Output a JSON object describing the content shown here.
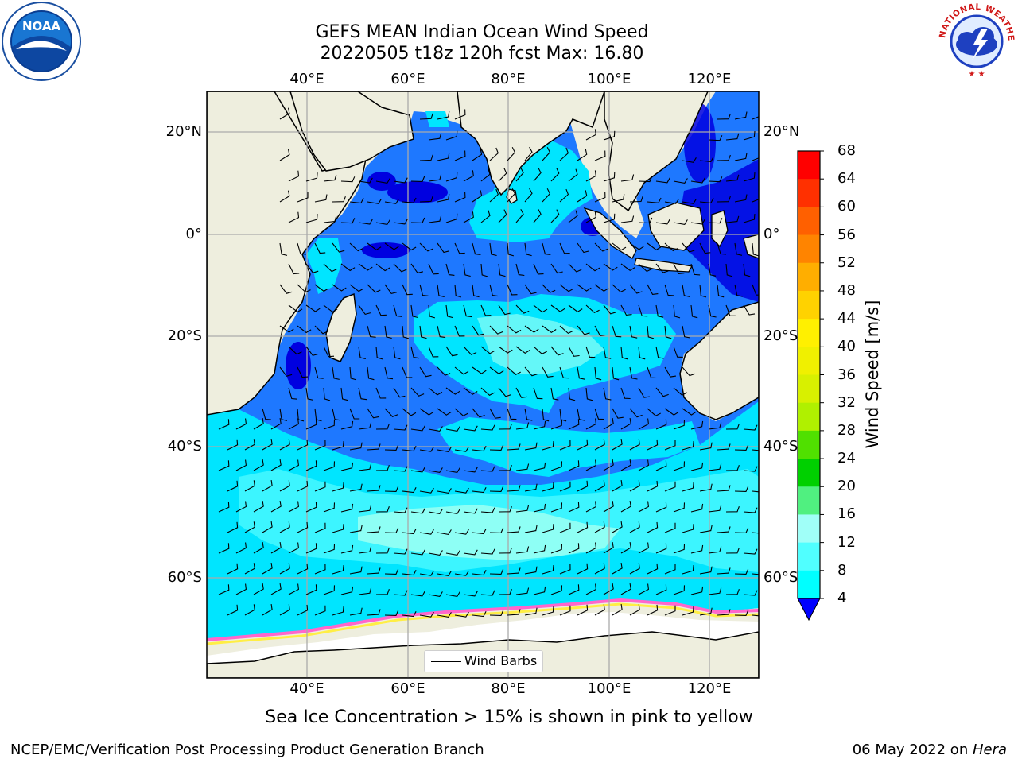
{
  "title": {
    "line1": "GEFS MEAN Indian Ocean Wind Speed",
    "line2": "20220505 t18z 120h fcst   Max: 16.80"
  },
  "map": {
    "lon_ticks": [
      "40°E",
      "60°E",
      "80°E",
      "100°E",
      "120°E"
    ],
    "lat_ticks": [
      "20°N",
      "0°",
      "20°S",
      "40°S",
      "60°S"
    ],
    "lon_range": [
      20,
      130
    ],
    "lat_range": [
      -72,
      26
    ],
    "colors": {
      "land": "#eeeede",
      "ice_free_ocean": "#ffffff",
      "speed_4_8": "#1e78ff",
      "speed_8_12": "#00e5ff",
      "speed_12_16": "#3cf5ff",
      "speed_16_20": "#8efff5",
      "speed_below_4": "#0000e0",
      "sea_ice_pink": "#ff66cc",
      "sea_ice_yellow": "#ffee44"
    }
  },
  "legend": {
    "wind_barbs_label": "Wind Barbs"
  },
  "colorbar": {
    "title": "Wind Speed [m/s]",
    "labels": [
      "68",
      "64",
      "60",
      "56",
      "52",
      "48",
      "44",
      "40",
      "36",
      "32",
      "28",
      "24",
      "20",
      "16",
      "12",
      "8",
      "4"
    ],
    "colors": [
      "#ff0000",
      "#ff3000",
      "#ff6000",
      "#ff8400",
      "#ffae00",
      "#ffd200",
      "#fff000",
      "#f0f000",
      "#d8f000",
      "#b0f000",
      "#50e000",
      "#00d000",
      "#50f080",
      "#a0fff8",
      "#50ffff",
      "#00ffff",
      "#0070ff"
    ],
    "extend_color": "#0000ff"
  },
  "footer": {
    "note": "Sea Ice Concentration > 15% is shown in pink to yellow",
    "left": "NCEP/EMC/Verification Post Processing Product Generation Branch",
    "right_date": "06 May 2022 on ",
    "right_machine": "Hera"
  },
  "logos": {
    "noaa_text": "NOAA",
    "nws_text": "NATIONAL WEATHER SERVICE"
  }
}
